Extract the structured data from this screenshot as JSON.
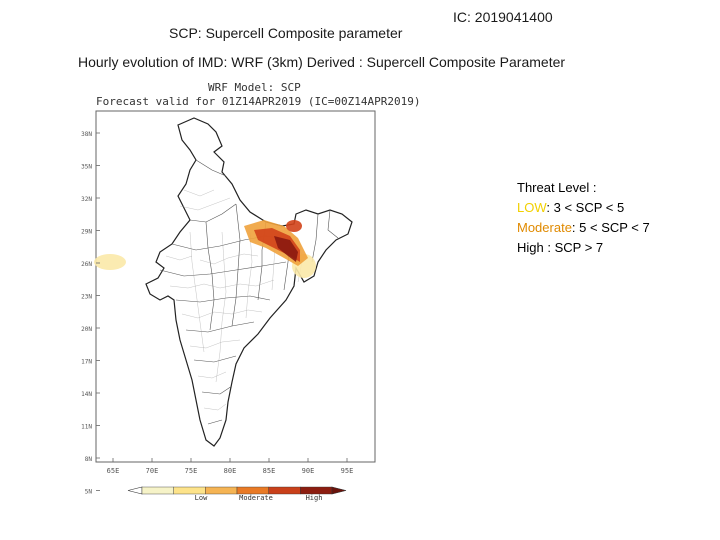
{
  "header": {
    "title": "SCP: Supercell Composite parameter",
    "ic": "IC: 2019041400",
    "subtitle": "Hourly evolution of IMD: WRF (3km) Derived : Supercell Composite Parameter"
  },
  "map": {
    "model_label": "WRF Model: SCP",
    "forecast_label": "Forecast valid for 01Z14APR2019 (IC=00Z14APR2019)",
    "lat_ticks": [
      "38N",
      "35N",
      "32N",
      "29N",
      "26N",
      "23N",
      "20N",
      "17N",
      "14N",
      "11N",
      "8N",
      "5N"
    ],
    "lon_ticks": [
      "65E",
      "70E",
      "75E",
      "80E",
      "85E",
      "90E",
      "95E"
    ],
    "colorbar": {
      "labels": [
        "Low",
        "Moderate",
        "High"
      ],
      "colors": [
        "#f6f3c8",
        "#fde38a",
        "#f5b454",
        "#e97a25",
        "#c9401a",
        "#8c1d10"
      ]
    },
    "hotspot_colors": {
      "high": "#8b1a10",
      "mid": "#d2421a",
      "low": "#f0a23c",
      "faint": "#fbe9a8"
    }
  },
  "legend": {
    "heading": "Threat Level :",
    "low_label": "LOW",
    "low_rule": ": 3 < SCP < 5",
    "moderate_label": "Moderate",
    "moderate_rule": ": 5 < SCP < 7",
    "high_label": "High",
    "high_rule": " : SCP > 7"
  }
}
